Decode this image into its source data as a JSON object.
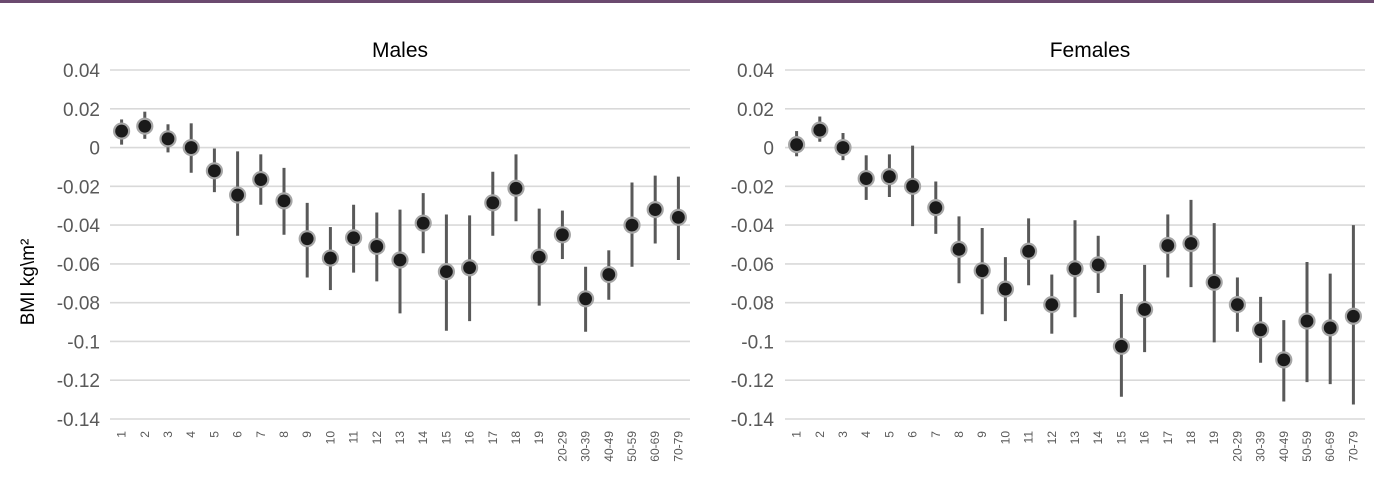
{
  "chart_data": [
    {
      "type": "scatter",
      "title": "Males",
      "ylabel": "BMI kg\\m²",
      "xlabel": "",
      "ylim": [
        -0.14,
        0.04
      ],
      "yticks": [
        0.04,
        0.02,
        0,
        -0.02,
        -0.04,
        -0.06,
        -0.08,
        -0.1,
        -0.12,
        -0.14
      ],
      "ytick_labels": [
        "0.04",
        "0.02",
        "0",
        "-0.02",
        "-0.04",
        "-0.06",
        "-0.08",
        "-0.1",
        "-0.12",
        "-0.14"
      ],
      "grid": true,
      "categories": [
        "1",
        "2",
        "3",
        "4",
        "5",
        "6",
        "7",
        "8",
        "9",
        "10",
        "11",
        "12",
        "13",
        "14",
        "15",
        "16",
        "17",
        "18",
        "19",
        "20-29",
        "30-39",
        "40-49",
        "50-59",
        "60-69",
        "70-79"
      ],
      "values": [
        0.0085,
        0.011,
        0.0045,
        0.0,
        -0.012,
        -0.0245,
        -0.0165,
        -0.0275,
        -0.047,
        -0.057,
        -0.0465,
        -0.051,
        -0.058,
        -0.039,
        -0.064,
        -0.062,
        -0.0285,
        -0.021,
        -0.0565,
        -0.045,
        -0.078,
        -0.0655,
        -0.04,
        -0.032,
        -0.036
      ],
      "error_low": [
        0.0015,
        0.0045,
        -0.0025,
        -0.013,
        -0.023,
        -0.0455,
        -0.0295,
        -0.045,
        -0.067,
        -0.0735,
        -0.0645,
        -0.069,
        -0.0855,
        -0.0545,
        -0.0945,
        -0.0895,
        -0.0455,
        -0.038,
        -0.0815,
        -0.0575,
        -0.095,
        -0.0785,
        -0.0615,
        -0.0495,
        -0.058
      ],
      "error_high": [
        0.0145,
        0.0185,
        0.012,
        0.0125,
        -0.0005,
        -0.002,
        -0.0035,
        -0.0105,
        -0.0285,
        -0.041,
        -0.0295,
        -0.0335,
        -0.032,
        -0.0235,
        -0.0345,
        -0.035,
        -0.0125,
        -0.0035,
        -0.0315,
        -0.0325,
        -0.0615,
        -0.053,
        -0.018,
        -0.0145,
        -0.015
      ]
    },
    {
      "type": "scatter",
      "title": "Females",
      "ylim": [
        -0.14,
        0.04
      ],
      "yticks": [
        0.04,
        0.02,
        0,
        -0.02,
        -0.04,
        -0.06,
        -0.08,
        -0.1,
        -0.12,
        -0.14
      ],
      "ytick_labels": [
        "0.04",
        "0.02",
        "0",
        "-0.02",
        "-0.04",
        "-0.06",
        "-0.08",
        "-0.1",
        "-0.12",
        "-0.14"
      ],
      "grid": true,
      "categories": [
        "1",
        "2",
        "3",
        "4",
        "5",
        "6",
        "7",
        "8",
        "9",
        "10",
        "11",
        "12",
        "13",
        "14",
        "15",
        "16",
        "17",
        "18",
        "19",
        "20-29",
        "30-39",
        "40-49",
        "50-59",
        "60-69",
        "70-79"
      ],
      "values": [
        0.0015,
        0.009,
        0.0,
        -0.016,
        -0.015,
        -0.02,
        -0.031,
        -0.0525,
        -0.0635,
        -0.073,
        -0.0535,
        -0.081,
        -0.0625,
        -0.0605,
        -0.1025,
        -0.0835,
        -0.0505,
        -0.0495,
        -0.0695,
        -0.081,
        -0.094,
        -0.1095,
        -0.0895,
        -0.093,
        -0.087
      ],
      "error_low": [
        -0.0045,
        0.003,
        -0.0065,
        -0.027,
        -0.0255,
        -0.0405,
        -0.0445,
        -0.07,
        -0.086,
        -0.0895,
        -0.071,
        -0.096,
        -0.0875,
        -0.075,
        -0.1285,
        -0.1055,
        -0.067,
        -0.072,
        -0.1005,
        -0.095,
        -0.111,
        -0.131,
        -0.121,
        -0.122,
        -0.1325
      ],
      "error_high": [
        0.0085,
        0.016,
        0.0075,
        -0.004,
        -0.0035,
        0.001,
        -0.0175,
        -0.0355,
        -0.0415,
        -0.0565,
        -0.0365,
        -0.0655,
        -0.0375,
        -0.0455,
        -0.0755,
        -0.0605,
        -0.0345,
        -0.027,
        -0.039,
        -0.067,
        -0.077,
        -0.089,
        -0.059,
        -0.065,
        -0.04
      ]
    }
  ]
}
